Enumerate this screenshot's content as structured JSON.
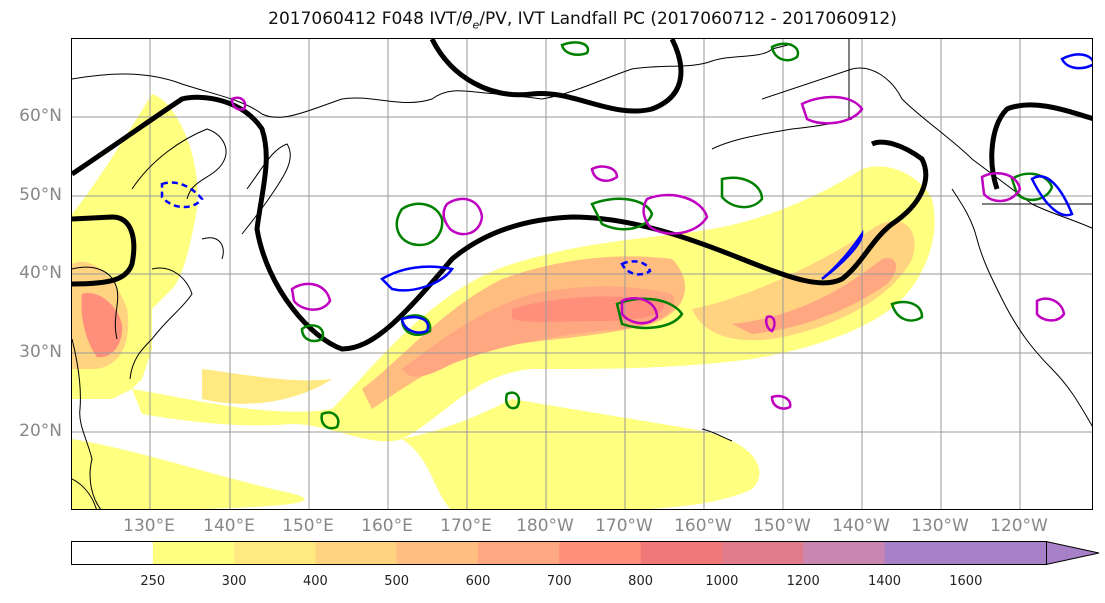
{
  "title_prefix": "2017060412 F048 IVT/",
  "title_theta": "θ",
  "title_sub": "e",
  "title_suffix": "/PV, IVT Landfall PC (2017060712 - 2017060912)",
  "lat_labels": [
    "60°N",
    "50°N",
    "40°N",
    "30°N",
    "20°N"
  ],
  "lon_labels": [
    "130°E",
    "140°E",
    "150°E",
    "160°E",
    "170°E",
    "180°W",
    "170°W",
    "160°W",
    "150°W",
    "140°W",
    "130°W",
    "120°W"
  ],
  "colorbar": {
    "ticks": [
      "250",
      "300",
      "400",
      "500",
      "600",
      "700",
      "800",
      "1000",
      "1200",
      "1400",
      "1600"
    ],
    "colors": [
      "#ffff80",
      "#ffe980",
      "#ffd380",
      "#ffbd80",
      "#ffa780",
      "#ff8f7a",
      "#f07878",
      "#e07b8c",
      "#c986b0",
      "#a880c8"
    ]
  },
  "colors": {
    "ivt_low": "#ffff80",
    "ivt_mid": "#ffbd80",
    "ivt_high": "#ff8f7a",
    "theta_contour": "#000000",
    "pv_positive": "#008000",
    "pv_negative": "#0000ff",
    "pv_magenta": "#c000c0",
    "gridline": "#9a9a9a",
    "coastline": "#000000"
  }
}
